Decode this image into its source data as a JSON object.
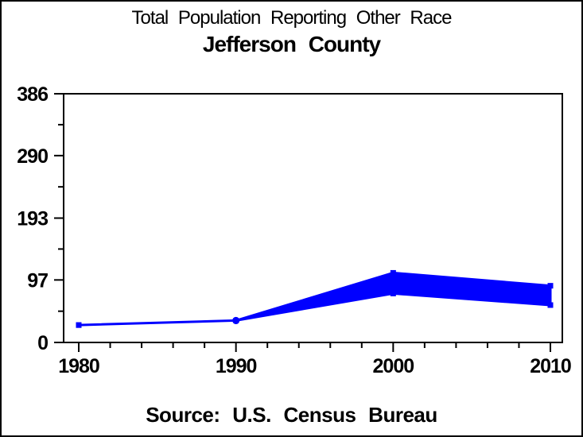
{
  "chart_data": {
    "type": "area",
    "title": "Total Population Reporting Other Race",
    "subtitle": "Jefferson County",
    "source_note": "Source: U.S. Census Bureau",
    "x": [
      1980,
      1990,
      2000,
      2010
    ],
    "series": [
      {
        "name": "low",
        "values": [
          27,
          34,
          76,
          58
        ]
      },
      {
        "name": "high",
        "values": [
          27,
          34,
          108,
          88
        ]
      }
    ],
    "x_ticks": [
      1980,
      1990,
      2000,
      2010
    ],
    "x_tick_labels": [
      "1980",
      "1990",
      "2000",
      "2010"
    ],
    "x_minor_tick_step_years": 2,
    "y_ticks": [
      0,
      97,
      193,
      290,
      386
    ],
    "y_tick_labels": [
      "0",
      "97",
      "193",
      "290",
      "386"
    ],
    "xlim": [
      1980,
      2010
    ],
    "ylim": [
      0,
      386
    ],
    "grid": false,
    "legend": "none",
    "band_color": "#0000ff",
    "axis_color": "#000000",
    "background_color": "#ffffff"
  }
}
